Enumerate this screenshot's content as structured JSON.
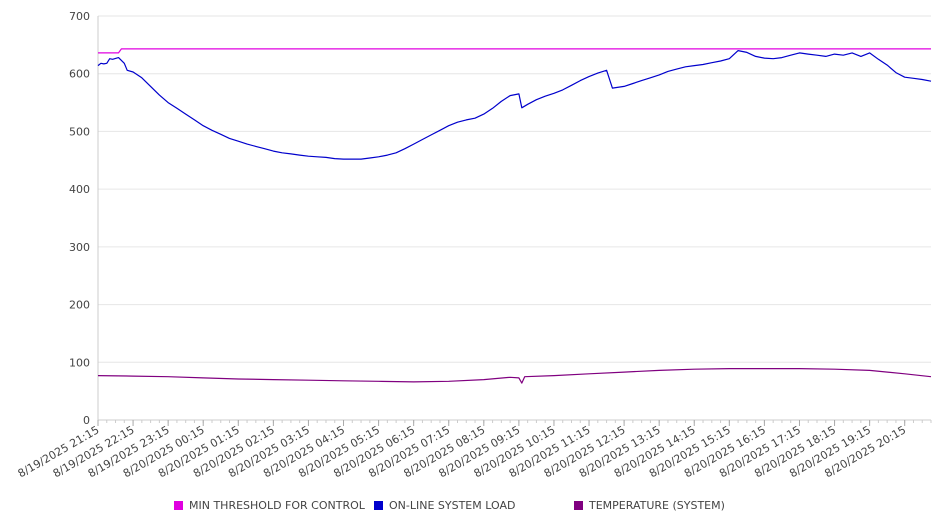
{
  "chart_data": {
    "type": "line",
    "title": "",
    "xlabel": "",
    "ylabel": "",
    "ylim": [
      0,
      700
    ],
    "yticks": [
      0,
      100,
      200,
      300,
      400,
      500,
      600,
      700
    ],
    "grid": true,
    "legend_position": "bottom",
    "x_start": "8/19/2025 21:15",
    "x_end": "8/20/2025 21:00",
    "x_tick_labels": [
      "8/19/2025 21:15",
      "8/19/2025 22:15",
      "8/19/2025 23:15",
      "8/20/2025 00:15",
      "8/20/2025 01:15",
      "8/20/2025 02:15",
      "8/20/2025 03:15",
      "8/20/2025 04:15",
      "8/20/2025 05:15",
      "8/20/2025 06:15",
      "8/20/2025 07:15",
      "8/20/2025 08:15",
      "8/20/2025 09:15",
      "8/20/2025 10:15",
      "8/20/2025 11:15",
      "8/20/2025 12:15",
      "8/20/2025 13:15",
      "8/20/2025 14:15",
      "8/20/2025 15:15",
      "8/20/2025 16:15",
      "8/20/2025 17:15",
      "8/20/2025 18:15",
      "8/20/2025 19:15",
      "8/20/2025 20:15"
    ],
    "series": [
      {
        "name": "MIN THRESHOLD FOR CONTROL",
        "color": "#e000e0",
        "points": [
          [
            "8/19/2025 21:15",
            636
          ],
          [
            "8/19/2025 21:35",
            636
          ],
          [
            "8/19/2025 21:50",
            636
          ],
          [
            "8/19/2025 21:55",
            643
          ],
          [
            "8/20/2025 21:00",
            643
          ]
        ]
      },
      {
        "name": "ON-LINE SYSTEM LOAD",
        "color": "#0000cc",
        "points": [
          [
            "8/19/2025 21:15",
            614
          ],
          [
            "8/19/2025 21:20",
            618
          ],
          [
            "8/19/2025 21:25",
            617
          ],
          [
            "8/19/2025 21:30",
            618
          ],
          [
            "8/19/2025 21:35",
            626
          ],
          [
            "8/19/2025 21:40",
            625
          ],
          [
            "8/19/2025 21:50",
            628
          ],
          [
            "8/19/2025 22:00",
            618
          ],
          [
            "8/19/2025 22:05",
            606
          ],
          [
            "8/19/2025 22:15",
            603
          ],
          [
            "8/19/2025 22:30",
            593
          ],
          [
            "8/19/2025 22:45",
            578
          ],
          [
            "8/19/2025 23:00",
            563
          ],
          [
            "8/19/2025 23:15",
            550
          ],
          [
            "8/19/2025 23:30",
            540
          ],
          [
            "8/19/2025 23:45",
            530
          ],
          [
            "8/20/2025 00:00",
            520
          ],
          [
            "8/20/2025 00:15",
            510
          ],
          [
            "8/20/2025 00:30",
            502
          ],
          [
            "8/20/2025 00:45",
            495
          ],
          [
            "8/20/2025 01:00",
            488
          ],
          [
            "8/20/2025 01:15",
            483
          ],
          [
            "8/20/2025 01:30",
            478
          ],
          [
            "8/20/2025 01:45",
            474
          ],
          [
            "8/20/2025 02:00",
            470
          ],
          [
            "8/20/2025 02:15",
            466
          ],
          [
            "8/20/2025 02:30",
            463
          ],
          [
            "8/20/2025 02:45",
            461
          ],
          [
            "8/20/2025 03:00",
            459
          ],
          [
            "8/20/2025 03:15",
            457
          ],
          [
            "8/20/2025 03:30",
            456
          ],
          [
            "8/20/2025 03:45",
            455
          ],
          [
            "8/20/2025 04:00",
            453
          ],
          [
            "8/20/2025 04:15",
            452
          ],
          [
            "8/20/2025 04:30",
            452
          ],
          [
            "8/20/2025 04:45",
            452
          ],
          [
            "8/20/2025 05:00",
            454
          ],
          [
            "8/20/2025 05:15",
            456
          ],
          [
            "8/20/2025 05:30",
            459
          ],
          [
            "8/20/2025 05:45",
            463
          ],
          [
            "8/20/2025 06:00",
            470
          ],
          [
            "8/20/2025 06:15",
            478
          ],
          [
            "8/20/2025 06:30",
            486
          ],
          [
            "8/20/2025 06:45",
            494
          ],
          [
            "8/20/2025 07:00",
            502
          ],
          [
            "8/20/2025 07:15",
            510
          ],
          [
            "8/20/2025 07:30",
            516
          ],
          [
            "8/20/2025 07:45",
            520
          ],
          [
            "8/20/2025 08:00",
            523
          ],
          [
            "8/20/2025 08:15",
            530
          ],
          [
            "8/20/2025 08:30",
            540
          ],
          [
            "8/20/2025 08:45",
            552
          ],
          [
            "8/20/2025 09:00",
            562
          ],
          [
            "8/20/2025 09:15",
            565
          ],
          [
            "8/20/2025 09:20",
            541
          ],
          [
            "8/20/2025 09:30",
            547
          ],
          [
            "8/20/2025 09:45",
            555
          ],
          [
            "8/20/2025 10:00",
            561
          ],
          [
            "8/20/2025 10:15",
            566
          ],
          [
            "8/20/2025 10:30",
            572
          ],
          [
            "8/20/2025 10:45",
            580
          ],
          [
            "8/20/2025 11:00",
            588
          ],
          [
            "8/20/2025 11:15",
            595
          ],
          [
            "8/20/2025 11:30",
            601
          ],
          [
            "8/20/2025 11:45",
            606
          ],
          [
            "8/20/2025 11:55",
            575
          ],
          [
            "8/20/2025 12:15",
            578
          ],
          [
            "8/20/2025 12:30",
            583
          ],
          [
            "8/20/2025 12:45",
            588
          ],
          [
            "8/20/2025 13:00",
            593
          ],
          [
            "8/20/2025 13:15",
            598
          ],
          [
            "8/20/2025 13:30",
            604
          ],
          [
            "8/20/2025 13:45",
            608
          ],
          [
            "8/20/2025 14:00",
            612
          ],
          [
            "8/20/2025 14:15",
            614
          ],
          [
            "8/20/2025 14:30",
            616
          ],
          [
            "8/20/2025 14:45",
            619
          ],
          [
            "8/20/2025 15:00",
            622
          ],
          [
            "8/20/2025 15:15",
            626
          ],
          [
            "8/20/2025 15:30",
            640
          ],
          [
            "8/20/2025 15:45",
            637
          ],
          [
            "8/20/2025 16:00",
            630
          ],
          [
            "8/20/2025 16:15",
            627
          ],
          [
            "8/20/2025 16:30",
            626
          ],
          [
            "8/20/2025 16:45",
            628
          ],
          [
            "8/20/2025 17:00",
            632
          ],
          [
            "8/20/2025 17:15",
            636
          ],
          [
            "8/20/2025 17:30",
            634
          ],
          [
            "8/20/2025 17:45",
            632
          ],
          [
            "8/20/2025 18:00",
            630
          ],
          [
            "8/20/2025 18:15",
            634
          ],
          [
            "8/20/2025 18:30",
            632
          ],
          [
            "8/20/2025 18:45",
            636
          ],
          [
            "8/20/2025 19:00",
            630
          ],
          [
            "8/20/2025 19:15",
            636
          ],
          [
            "8/20/2025 19:30",
            625
          ],
          [
            "8/20/2025 19:45",
            615
          ],
          [
            "8/20/2025 20:00",
            602
          ],
          [
            "8/20/2025 20:15",
            594
          ],
          [
            "8/20/2025 20:30",
            592
          ],
          [
            "8/20/2025 20:45",
            590
          ],
          [
            "8/20/2025 21:00",
            587
          ]
        ]
      },
      {
        "name": "TEMPERATURE (SYSTEM)",
        "color": "#800080",
        "points": [
          [
            "8/19/2025 21:15",
            77
          ],
          [
            "8/19/2025 22:15",
            76
          ],
          [
            "8/19/2025 23:15",
            75
          ],
          [
            "8/20/2025 00:15",
            73
          ],
          [
            "8/20/2025 01:15",
            71
          ],
          [
            "8/20/2025 02:15",
            70
          ],
          [
            "8/20/2025 03:15",
            69
          ],
          [
            "8/20/2025 04:15",
            68
          ],
          [
            "8/20/2025 05:15",
            67
          ],
          [
            "8/20/2025 06:15",
            66
          ],
          [
            "8/20/2025 07:15",
            67
          ],
          [
            "8/20/2025 08:15",
            70
          ],
          [
            "8/20/2025 09:00",
            74
          ],
          [
            "8/20/2025 09:15",
            73
          ],
          [
            "8/20/2025 09:20",
            64
          ],
          [
            "8/20/2025 09:25",
            75
          ],
          [
            "8/20/2025 10:15",
            77
          ],
          [
            "8/20/2025 11:15",
            80
          ],
          [
            "8/20/2025 12:15",
            83
          ],
          [
            "8/20/2025 13:15",
            86
          ],
          [
            "8/20/2025 14:15",
            88
          ],
          [
            "8/20/2025 15:15",
            89
          ],
          [
            "8/20/2025 16:15",
            89
          ],
          [
            "8/20/2025 17:15",
            89
          ],
          [
            "8/20/2025 18:15",
            88
          ],
          [
            "8/20/2025 19:15",
            86
          ],
          [
            "8/20/2025 20:15",
            80
          ],
          [
            "8/20/2025 21:00",
            75
          ]
        ]
      }
    ]
  }
}
